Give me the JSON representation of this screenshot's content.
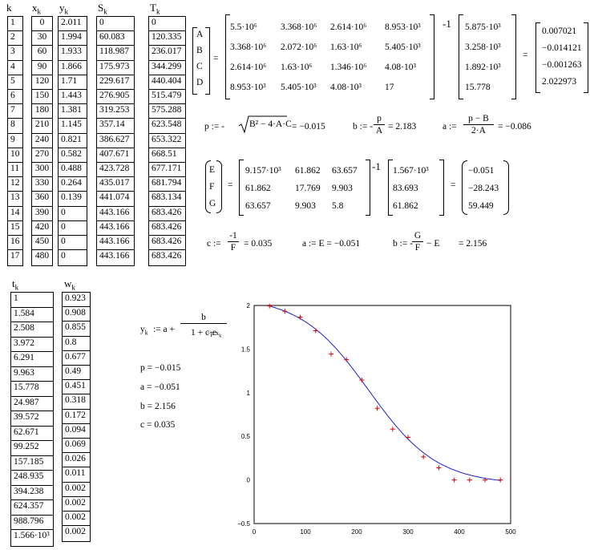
{
  "headers": {
    "k": "k",
    "x": "x",
    "y": "y",
    "S": "S",
    "T": "T",
    "t": "t",
    "w": "w",
    "sub": "k"
  },
  "k": [
    "1",
    "2",
    "3",
    "4",
    "5",
    "6",
    "7",
    "8",
    "9",
    "10",
    "11",
    "12",
    "13",
    "14",
    "15",
    "16",
    "17"
  ],
  "x": [
    "0",
    "30",
    "60",
    "90",
    "120",
    "150",
    "180",
    "210",
    "240",
    "270",
    "300",
    "330",
    "360",
    "390",
    "420",
    "450",
    "480"
  ],
  "y": [
    "2.011",
    "1.994",
    "1.933",
    "1.866",
    "1.71",
    "1.443",
    "1.381",
    "1.145",
    "0.821",
    "0.582",
    "0.488",
    "0.264",
    "0.139",
    "0",
    "0",
    "0",
    "0"
  ],
  "S": [
    "0",
    "60.083",
    "118.987",
    "175.973",
    "229.617",
    "276.905",
    "319.253",
    "357.14",
    "386.627",
    "407.671",
    "423.728",
    "435.017",
    "441.074",
    "443.166",
    "443.166",
    "443.166",
    "443.166"
  ],
  "T": [
    "0",
    "120.335",
    "236.017",
    "344.299",
    "440.404",
    "515.479",
    "575.288",
    "623.548",
    "653.322",
    "668.51",
    "677.171",
    "681.794",
    "683.134",
    "683.426",
    "683.426",
    "683.426",
    "683.426"
  ],
  "t": [
    "1",
    "1.584",
    "2.508",
    "3.972",
    "6.291",
    "9.963",
    "15.778",
    "24.987",
    "39.572",
    "62.671",
    "99.252",
    "157.185",
    "248.935",
    "394.238",
    "624.357",
    "988.796",
    "1.566·10³"
  ],
  "w": [
    "0.923",
    "0.908",
    "0.855",
    "0.8",
    "0.677",
    "0.49",
    "0.451",
    "0.318",
    "0.172",
    "0.094",
    "0.069",
    "0.026",
    "0.011",
    "0.002",
    "0.002",
    "0.002",
    "0.002"
  ],
  "eq1": {
    "vars": [
      "A",
      "B",
      "C",
      "D"
    ],
    "matrix": [
      [
        "5.5·10⁶",
        "3.368·10⁶",
        "2.614·10⁶",
        "8.953·10³"
      ],
      [
        "3.368·10⁶",
        "2.072·10⁶",
        "1.63·10⁶",
        "5.405·10³"
      ],
      [
        "2.614·10⁶",
        "1.63·10⁶",
        "1.346·10⁶",
        "4.08·10³"
      ],
      [
        "8.953·10³",
        "5.405·10³",
        "4.08·10³",
        "17"
      ]
    ],
    "inv": "-1",
    "vec": [
      "5.875·10³",
      "3.258·10³",
      "1.892·10³",
      "15.778"
    ],
    "result": [
      "0.007021",
      "−0.014121",
      "−0.001263",
      "2.022973"
    ]
  },
  "formulas1": {
    "p_lhs": "p := -",
    "p_rad": "B² − 4·A·C",
    "p_val": "= −0.015",
    "b_lhs": "b := -",
    "b_num": "p",
    "b_den": "A",
    "b_val": "= 2.183",
    "a_lhs": "a :=",
    "a_num": "p − B",
    "a_den": "2·A",
    "a_val": "= −0.086"
  },
  "eq2": {
    "vars": [
      "E",
      "F",
      "G"
    ],
    "matrix": [
      [
        "9.157·10³",
        "61.862",
        "63.657"
      ],
      [
        "61.862",
        "17.769",
        "9.903"
      ],
      [
        "63.657",
        "9.903",
        "5.8"
      ]
    ],
    "inv": "-1",
    "vec": [
      "1.567·10³",
      "83.693",
      "61.862"
    ],
    "result": [
      "−0.051",
      "−28.243",
      "59.449"
    ]
  },
  "formulas2": {
    "c_lhs": "c :=",
    "c_num": "-1",
    "c_den": "F",
    "c_val": "= 0.035",
    "a_text": "a := E = −0.051",
    "b_lhs": "b := -",
    "b_num": "G",
    "b_den": "F",
    "b_tail": "− E",
    "b_val": "= 2.156"
  },
  "model": {
    "lhs": "y",
    "lhs_sub": "k",
    "def": ":= a +",
    "num": "b",
    "den": "1 + c·e",
    "exp": "−p·x",
    "exp_sub": "k",
    "p": "p = −0.015",
    "a": "a = −0.051",
    "b": "b = 2.156",
    "c": "c = 0.035"
  },
  "chart_data": {
    "type": "scatter",
    "xlim": [
      0,
      500
    ],
    "ylim": [
      -0.5,
      2
    ],
    "x_ticks": [
      "0",
      "100",
      "200",
      "300",
      "400",
      "500"
    ],
    "y_ticks": [
      "2",
      "1.5",
      "1",
      "0.5",
      "0",
      "−0.5"
    ],
    "points": {
      "x": [
        30,
        60,
        90,
        120,
        150,
        180,
        210,
        240,
        270,
        300,
        330,
        360,
        390,
        420,
        450,
        480
      ],
      "y": [
        1.994,
        1.933,
        1.866,
        1.71,
        1.443,
        1.381,
        1.145,
        0.821,
        0.582,
        0.488,
        0.264,
        0.139,
        0,
        0,
        0,
        0
      ]
    },
    "curve": {
      "a": -0.051,
      "b": 2.156,
      "c": 0.035,
      "p": -0.015
    },
    "point_color": "#e00000",
    "curve_color": "#1f1fd0"
  }
}
